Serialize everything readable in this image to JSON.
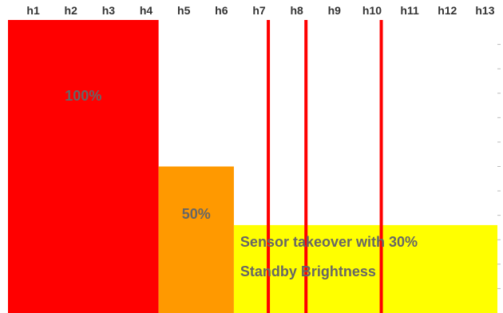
{
  "chart_data": {
    "type": "bar",
    "title": "",
    "xlabel": "",
    "ylabel": "",
    "ylim": [
      0,
      100
    ],
    "hours": [
      "h1",
      "h2",
      "h3",
      "h4",
      "h5",
      "h6",
      "h7",
      "h8",
      "h9",
      "h10",
      "h11",
      "h12",
      "h13"
    ],
    "segments": [
      {
        "start_hour": 0,
        "end_hour": 4,
        "value": 100,
        "label": "100%",
        "color": "#ff0000",
        "label_color": "#666666"
      },
      {
        "start_hour": 4,
        "end_hour": 6,
        "value": 50,
        "label": "50%",
        "color": "#ff9900",
        "label_color": "#666666"
      },
      {
        "start_hour": 6,
        "end_hour": 13,
        "value": 30,
        "label_lines": [
          "Sensor takeover with 30%",
          "Standby Brightness"
        ],
        "color": "#ffff00",
        "label_color": "#666666"
      }
    ],
    "event_markers": [
      {
        "hour": 7.0,
        "color": "#ff0000"
      },
      {
        "hour": 8.0,
        "color": "#ff0000"
      },
      {
        "hour": 10.0,
        "color": "#ff0000"
      }
    ]
  }
}
